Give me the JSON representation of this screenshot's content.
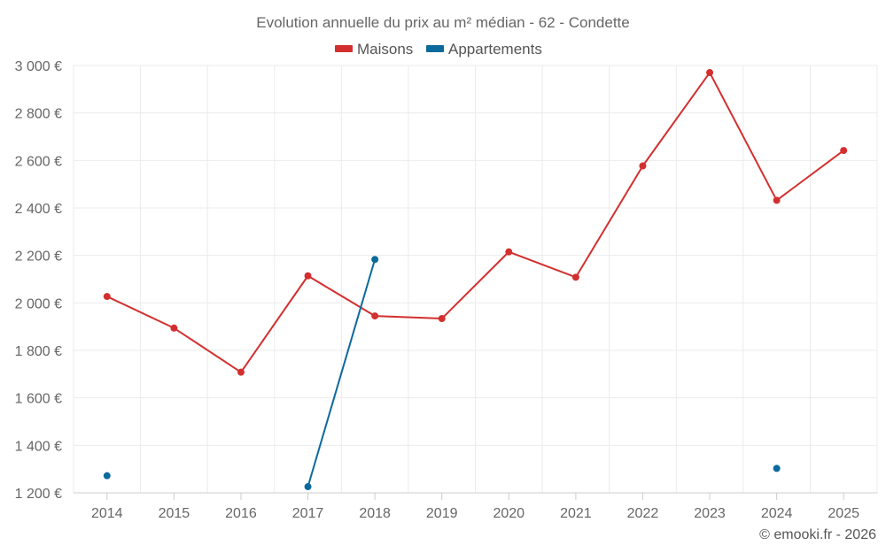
{
  "chart_data": {
    "type": "line",
    "title": "Evolution annuelle du prix au m² médian - 62 - Condette",
    "categories": [
      "2014",
      "2015",
      "2016",
      "2017",
      "2018",
      "2019",
      "2020",
      "2021",
      "2022",
      "2023",
      "2024",
      "2025"
    ],
    "ylim": [
      1200,
      3000
    ],
    "yticks": [
      1200,
      1400,
      1600,
      1800,
      2000,
      2200,
      2400,
      2600,
      2800,
      3000
    ],
    "ytick_labels": [
      "1 200 €",
      "1 400 €",
      "1 600 €",
      "1 800 €",
      "2 000 €",
      "2 200 €",
      "2 400 €",
      "2 600 €",
      "2 800 €",
      "3 000 €"
    ],
    "grid": true,
    "legend_position": "top-center",
    "series": [
      {
        "name": "Maisons",
        "color": "#d32f2f",
        "values": [
          2027,
          1894,
          1708,
          2114,
          1945,
          1934,
          2215,
          2108,
          2577,
          2970,
          2432,
          2642
        ]
      },
      {
        "name": "Appartements",
        "color": "#0b6a9c",
        "values": [
          1272,
          null,
          null,
          1226,
          2183,
          null,
          null,
          null,
          null,
          null,
          1303,
          null
        ]
      }
    ]
  },
  "credit": "© emooki.fr - 2026"
}
